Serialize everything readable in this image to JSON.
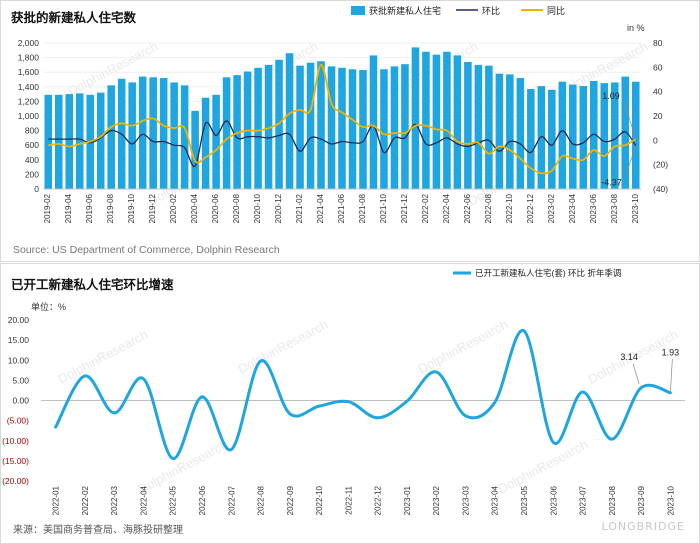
{
  "chart_data": [
    {
      "type": "bar",
      "title": "获批的新建私人住宅数",
      "unit_right": "in %",
      "source": "Source: US Department of Commerce, Dolphin Research",
      "ylim_left": [
        0,
        2000
      ],
      "ylim_right": [
        -40,
        80
      ],
      "yticks_left": [
        "0",
        "200",
        "400",
        "600",
        "800",
        "1,000",
        "1,200",
        "1,400",
        "1,600",
        "1,800",
        "2,000"
      ],
      "yticks_right": [
        "(40)",
        "(20)",
        "0",
        "20",
        "40",
        "60",
        "80"
      ],
      "categories": [
        "2019-02",
        "2019-03",
        "2019-04",
        "2019-05",
        "2019-06",
        "2019-07",
        "2019-08",
        "2019-09",
        "2019-10",
        "2019-11",
        "2019-12",
        "2020-01",
        "2020-02",
        "2020-03",
        "2020-04",
        "2020-05",
        "2020-06",
        "2020-07",
        "2020-08",
        "2020-09",
        "2020-10",
        "2020-11",
        "2020-12",
        "2021-01",
        "2021-02",
        "2021-03",
        "2021-04",
        "2021-05",
        "2021-06",
        "2021-07",
        "2021-08",
        "2021-09",
        "2021-10",
        "2021-11",
        "2021-12",
        "2022-01",
        "2022-02",
        "2022-03",
        "2022-04",
        "2022-05",
        "2022-06",
        "2022-07",
        "2022-08",
        "2022-09",
        "2022-10",
        "2022-11",
        "2022-12",
        "2023-01",
        "2023-02",
        "2023-03",
        "2023-04",
        "2023-05",
        "2023-06",
        "2023-07",
        "2023-08",
        "2023-09",
        "2023-10"
      ],
      "xticks": [
        "2019-02",
        "2019-04",
        "2019-06",
        "2019-08",
        "2019-10",
        "2019-12",
        "2020-02",
        "2020-04",
        "2020-06",
        "2020-08",
        "2020-10",
        "2020-12",
        "2021-02",
        "2021-04",
        "2021-06",
        "2021-08",
        "2021-10",
        "2021-12",
        "2022-02",
        "2022-04",
        "2022-06",
        "2022-08",
        "2022-10",
        "2022-12",
        "2023-02",
        "2023-04",
        "2023-06",
        "2023-08",
        "2023-10"
      ],
      "series": [
        {
          "name": "获批新建私人住宅",
          "axis": "left",
          "color": "#1fa6e0",
          "values": [
            1290,
            1290,
            1300,
            1310,
            1290,
            1320,
            1420,
            1510,
            1460,
            1540,
            1530,
            1520,
            1460,
            1420,
            1070,
            1250,
            1290,
            1530,
            1560,
            1610,
            1660,
            1700,
            1770,
            1860,
            1690,
            1730,
            1750,
            1680,
            1660,
            1640,
            1630,
            1830,
            1640,
            1680,
            1710,
            1940,
            1880,
            1840,
            1880,
            1830,
            1740,
            1700,
            1690,
            1580,
            1570,
            1520,
            1370,
            1410,
            1360,
            1470,
            1430,
            1410,
            1480,
            1450,
            1460,
            1540,
            1470
          ]
        },
        {
          "name": "环比",
          "axis": "right",
          "color": "#1f2d5a",
          "values": [
            1,
            1,
            1,
            1,
            -2,
            2,
            8,
            5,
            -3,
            5,
            -1,
            -1,
            -4,
            -6,
            -21,
            14,
            4,
            16,
            2,
            3,
            3,
            2,
            4,
            5,
            -9,
            2,
            1,
            -3,
            -1,
            -2,
            -1,
            12,
            -10,
            2,
            2,
            13,
            -3,
            -2,
            2,
            -3,
            -5,
            -2,
            0,
            -9,
            -1,
            -3,
            -10,
            3,
            -4,
            8,
            -3,
            -2,
            5,
            -1,
            1,
            7,
            -4.37
          ]
        },
        {
          "name": "同比",
          "axis": "right",
          "color": "#f0b400",
          "values": [
            -4,
            -3,
            -5,
            -3,
            -1,
            3,
            11,
            14,
            12,
            16,
            18,
            12,
            10,
            10,
            -17,
            -14,
            -8,
            1,
            6,
            8,
            8,
            10,
            14,
            22,
            25,
            25,
            62,
            30,
            23,
            17,
            11,
            12,
            5,
            6,
            6,
            12,
            12,
            9,
            8,
            -1,
            -3,
            -2,
            -11,
            -5,
            -8,
            -15,
            -23,
            -27,
            -25,
            -13,
            -15,
            -16,
            -8,
            -13,
            -5,
            -4,
            1.09
          ]
        }
      ],
      "data_labels": [
        {
          "series": "同比",
          "category": "2023-10",
          "text": "1.09"
        },
        {
          "series": "环比",
          "category": "2023-10",
          "text": "-4.37"
        }
      ]
    },
    {
      "type": "line",
      "title": "已开工新建私人住宅环比增速",
      "unit_label": "单位：%",
      "source": "来源：美国商务普查局、海豚投研整理",
      "ylim": [
        -20,
        20
      ],
      "yticks": [
        "(20.00)",
        "(15.00)",
        "(10.00)",
        "(5.00)",
        "0.00",
        "5.00",
        "10.00",
        "15.00",
        "20.00"
      ],
      "categories": [
        "2022-01",
        "2022-02",
        "2022-03",
        "2022-04",
        "2022-05",
        "2022-06",
        "2022-07",
        "2022-08",
        "2022-09",
        "2022-10",
        "2022-11",
        "2022-12",
        "2023-01",
        "2023-02",
        "2023-03",
        "2023-04",
        "2023-05",
        "2023-06",
        "2023-07",
        "2023-08",
        "2023-09",
        "2023-10"
      ],
      "series": [
        {
          "name": "已开工新建私人住宅(套) 环比 折年季调",
          "color": "#1fa6e0",
          "values": [
            -6.6,
            6.1,
            -3.1,
            5.4,
            -14.4,
            0.9,
            -12.2,
            9.8,
            -3.3,
            -1.4,
            -0.3,
            -4.3,
            -0.2,
            7.1,
            -3.8,
            -0.5,
            17.3,
            -10.4,
            2.1,
            -9.6,
            3.14,
            1.93
          ]
        }
      ],
      "data_labels": [
        {
          "category": "2023-09",
          "text": "3.14"
        },
        {
          "category": "2023-10",
          "text": "1.93"
        }
      ]
    }
  ],
  "watermarks": [
    "海豚投研",
    "DolphinResearch"
  ],
  "brand": "LONGBRIDGE"
}
